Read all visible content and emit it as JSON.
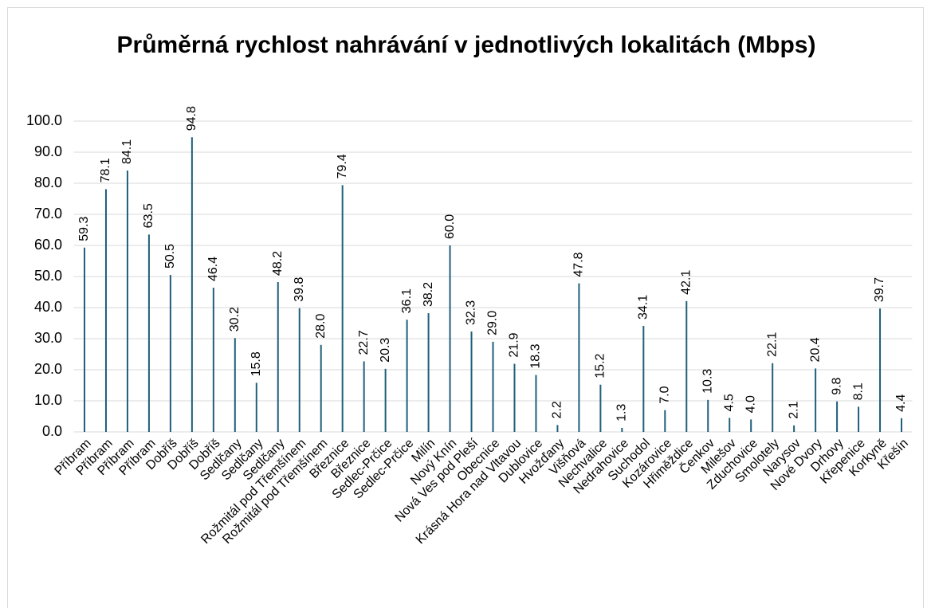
{
  "chart_data": {
    "type": "bar",
    "title": "Průměrná rychlost nahrávání v jednotlivých lokalitách (Mbps)",
    "categories": [
      "Příbram",
      "Příbram",
      "Příbram",
      "Příbram",
      "Dobříš",
      "Dobříš",
      "Dobříš",
      "Sedlčany",
      "Sedlčany",
      "Sedlčany",
      "Rožmitál pod Třemšínem",
      "Rožmitál pod Třemšínem",
      "Březnice",
      "Březnice",
      "Sedlec-Prčice",
      "Sedlec-Prčice",
      "Milín",
      "Nový Knín",
      "Nová Ves pod Pleší",
      "Obecnice",
      "Krásná Hora nad Vltavou",
      "Dublovice",
      "Hvožďany",
      "Višňová",
      "Nechvalice",
      "Nedrahovice",
      "Suchodol",
      "Kozárovice",
      "Hřiměždice",
      "Čenkov",
      "Milešov",
      "Zduchovice",
      "Smolotely",
      "Narysov",
      "Nové Dvory",
      "Drhovy",
      "Křepenice",
      "Korkyně",
      "Křešín"
    ],
    "values": [
      59.3,
      78.1,
      84.1,
      63.5,
      50.5,
      94.8,
      46.4,
      30.2,
      15.8,
      48.2,
      39.8,
      28.0,
      79.4,
      22.7,
      20.3,
      36.1,
      38.2,
      60.0,
      32.3,
      29.0,
      21.9,
      18.3,
      2.2,
      47.8,
      15.2,
      1.3,
      34.1,
      7.0,
      42.1,
      10.3,
      4.5,
      4.0,
      22.1,
      2.1,
      20.4,
      9.8,
      8.1,
      39.7,
      4.4
    ],
    "value_labels": [
      "59.3",
      "78.1",
      "84.1",
      "63.5",
      "50.5",
      "94.8",
      "46.4",
      "30.2",
      "15.8",
      "48.2",
      "39.8",
      "28.0",
      "79.4",
      "22.7",
      "20.3",
      "36.1",
      "38.2",
      "60.0",
      "32.3",
      "29.0",
      "21.9",
      "18.3",
      "2.2",
      "47.8",
      "15.2",
      "1.3",
      "34.1",
      "7.0",
      "42.1",
      "10.3",
      "4.5",
      "4.0",
      "22.1",
      "2.1",
      "20.4",
      "9.8",
      "8.1",
      "39.7",
      "4.4"
    ],
    "color": "#1f5f7a",
    "ylim": [
      0,
      100
    ],
    "yticks": [
      {
        "value": 0,
        "label": "0.0"
      },
      {
        "value": 10,
        "label": "10.0"
      },
      {
        "value": 20,
        "label": "20.0"
      },
      {
        "value": 30,
        "label": "30.0"
      },
      {
        "value": 40,
        "label": "40.0"
      },
      {
        "value": 50,
        "label": "50.0"
      },
      {
        "value": 60,
        "label": "60.0"
      },
      {
        "value": 70,
        "label": "70.0"
      },
      {
        "value": 80,
        "label": "80.0"
      },
      {
        "value": 90,
        "label": "90.0"
      },
      {
        "value": 100,
        "label": "100.0"
      }
    ],
    "grid": true
  }
}
